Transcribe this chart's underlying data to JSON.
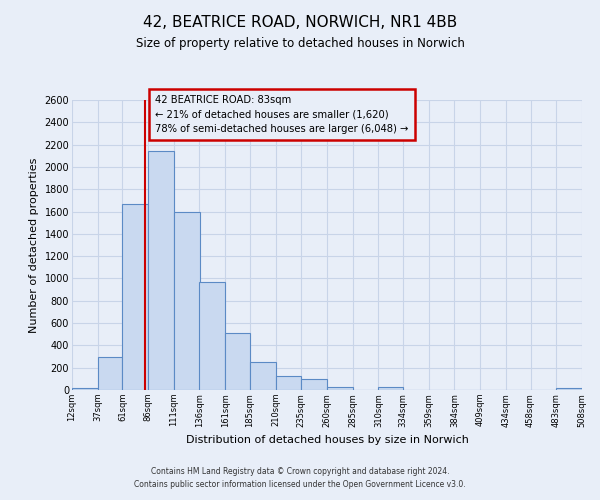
{
  "title_line1": "42, BEATRICE ROAD, NORWICH, NR1 4BB",
  "title_line2": "Size of property relative to detached houses in Norwich",
  "xlabel": "Distribution of detached houses by size in Norwich",
  "ylabel": "Number of detached properties",
  "bar_edges": [
    12,
    37,
    61,
    86,
    111,
    136,
    161,
    185,
    210,
    235,
    260,
    285,
    310,
    334,
    359,
    384,
    409,
    434,
    458,
    483,
    508
  ],
  "bar_heights": [
    20,
    295,
    1670,
    2140,
    1600,
    965,
    510,
    252,
    125,
    100,
    30,
    0,
    30,
    0,
    0,
    0,
    0,
    0,
    0,
    20
  ],
  "bar_color": "#c9d9f0",
  "bar_edge_color": "#5b8ac5",
  "property_size": 83,
  "vline_color": "#cc0000",
  "annotation_line1": "42 BEATRICE ROAD: 83sqm",
  "annotation_line2": "← 21% of detached houses are smaller (1,620)",
  "annotation_line3": "78% of semi-detached houses are larger (6,048) →",
  "annotation_box_edge": "#cc0000",
  "ylim": [
    0,
    2600
  ],
  "yticks": [
    0,
    200,
    400,
    600,
    800,
    1000,
    1200,
    1400,
    1600,
    1800,
    2000,
    2200,
    2400,
    2600
  ],
  "xtick_labels": [
    "12sqm",
    "37sqm",
    "61sqm",
    "86sqm",
    "111sqm",
    "136sqm",
    "161sqm",
    "185sqm",
    "210sqm",
    "235sqm",
    "260sqm",
    "285sqm",
    "310sqm",
    "334sqm",
    "359sqm",
    "384sqm",
    "409sqm",
    "434sqm",
    "458sqm",
    "483sqm",
    "508sqm"
  ],
  "grid_color": "#c8d4e8",
  "bg_color": "#e8eef8",
  "footnote1": "Contains HM Land Registry data © Crown copyright and database right 2024.",
  "footnote2": "Contains public sector information licensed under the Open Government Licence v3.0."
}
